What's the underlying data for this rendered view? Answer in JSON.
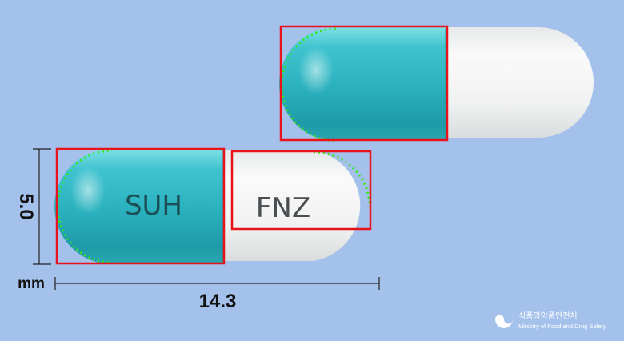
{
  "capsules": {
    "front": {
      "cap_imprint": "SUH",
      "body_imprint": "FNZ"
    },
    "back": {
      "cap_imprint": "",
      "body_imprint": ""
    }
  },
  "dimensions": {
    "width_value": "14.3",
    "height_value": "5.0",
    "unit": "mm"
  },
  "colors": {
    "background": "#a4c1ec",
    "cap_teal": "#2fb3c0",
    "body_white": "#f2f3f3",
    "detection_box": "#e8121a",
    "contour_points": "#39e61e"
  },
  "logo": {
    "icon": "mfds-emblem-icon",
    "korean_name": "식품의약품안전처",
    "english_name": "Ministry of Food and Drug Safety"
  }
}
